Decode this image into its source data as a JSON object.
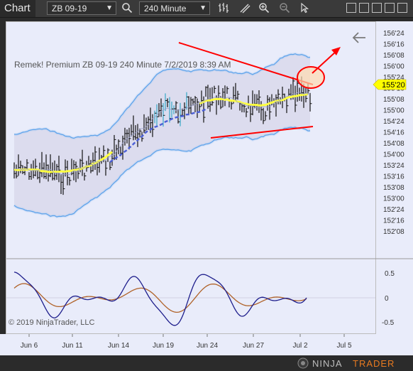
{
  "toolbar": {
    "title": "Chart",
    "instrument": "ZB 09-19",
    "interval": "240 Minute",
    "icons": [
      "search-icon",
      "bar-type-icon",
      "drawing-tools-icon",
      "zoom-in-icon",
      "zoom-out-icon",
      "pointer-icon"
    ],
    "window_icons": [
      "window-icon-1",
      "window-icon-2",
      "window-icon-3",
      "window-icon-4",
      "window-icon-5"
    ]
  },
  "chart": {
    "label": "Remek!  Premium  ZB 09-19  240 Minute  7/2/2019 8:39 AM",
    "copyright": "© 2019 NinjaTrader, LLC",
    "price_marker": "155'20",
    "brand_ninja": "NINJA",
    "brand_trader": "TRADER",
    "colors": {
      "background": "#e9ecfa",
      "band": "#2e8de8",
      "trendline": "#ff0000",
      "marker": "#ffff00",
      "ma_yellow": "#ffff40",
      "ma_blue_dashed": "#4b5fd6",
      "oscillator_blue": "#1e1e8c",
      "oscillator_brown": "#b0632a"
    }
  },
  "chart_data": {
    "type": "candlestick",
    "price_axis_labels": [
      "156'24",
      "156'16",
      "156'08",
      "156'00",
      "155'24",
      "155'16",
      "155'08",
      "155'00",
      "154'24",
      "154'16",
      "154'08",
      "154'00",
      "153'24",
      "153'16",
      "153'08",
      "153'00",
      "152'24",
      "152'16",
      "152'08"
    ],
    "oscillator_axis_labels": [
      "0.5",
      "0",
      "-0.5"
    ],
    "x_tick_labels": [
      "Jun 6",
      "Jun 11",
      "Jun 14",
      "Jun 19",
      "Jun 24",
      "Jun 27",
      "Jul 2",
      "Jul 5"
    ],
    "current_price": "155'20"
  }
}
